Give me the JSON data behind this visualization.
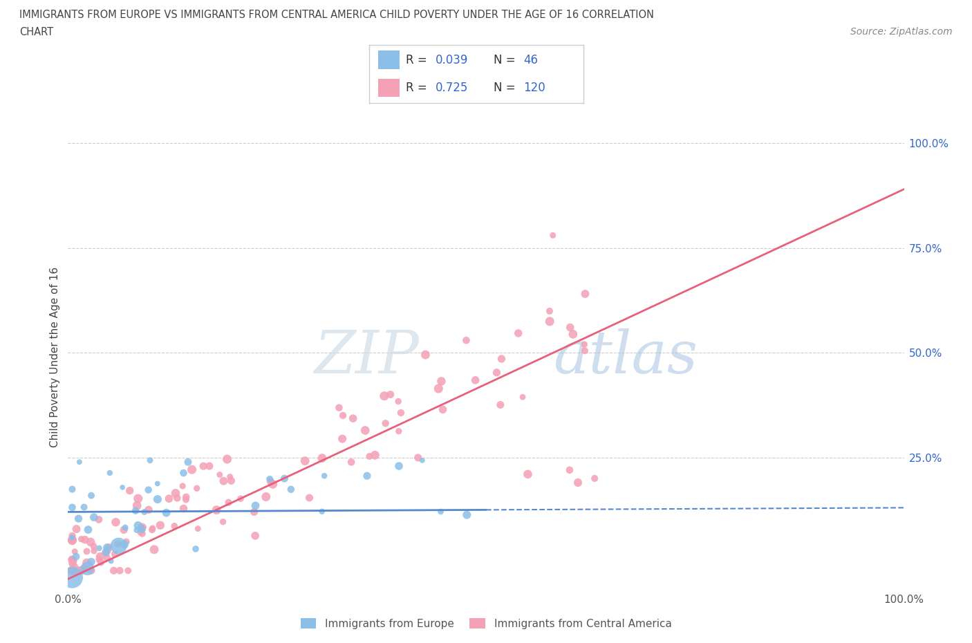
{
  "title_line1": "IMMIGRANTS FROM EUROPE VS IMMIGRANTS FROM CENTRAL AMERICA CHILD POVERTY UNDER THE AGE OF 16 CORRELATION",
  "title_line2": "CHART",
  "source": "Source: ZipAtlas.com",
  "ylabel": "Child Poverty Under the Age of 16",
  "legend_label1": "Immigrants from Europe",
  "legend_label2": "Immigrants from Central America",
  "legend_R1": "0.039",
  "legend_N1": "46",
  "legend_R2": "0.725",
  "legend_N2": "120",
  "color_europe": "#8BBFE8",
  "color_central_america": "#F4A0B5",
  "color_europe_line": "#5588CC",
  "color_central_america_line": "#E8607A",
  "color_text_blue": "#3366CC",
  "watermark_zip": "ZIP",
  "watermark_atlas": "atlas",
  "background_color": "#FFFFFF",
  "grid_color": "#CCCCCC",
  "title_color": "#444444",
  "source_color": "#888888",
  "ylabel_color": "#444444"
}
